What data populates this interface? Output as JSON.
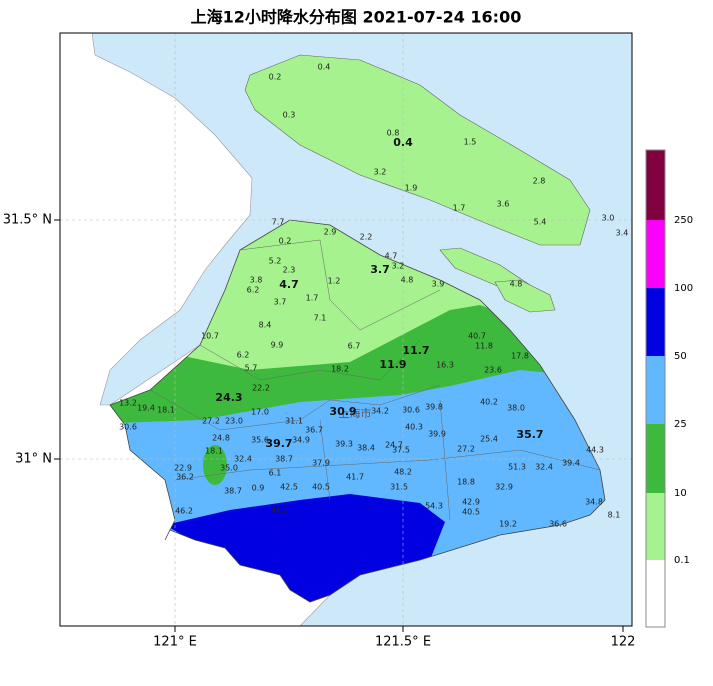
{
  "title": "上海12小时降水分布图 2021-07-24 16:00",
  "axes": {
    "x_labels": [
      "121° E",
      "121.5° E",
      "122"
    ],
    "y_labels": [
      "31.5° N",
      "31° N"
    ]
  },
  "colorbar": {
    "colors": [
      "#ffffff",
      "#a6f28f",
      "#3dba3d",
      "#61b8ff",
      "#0000e1",
      "#fa00fa",
      "#800040"
    ],
    "labels": [
      "0.1",
      "10",
      "25",
      "50",
      "100",
      "250"
    ]
  },
  "city_label": "上海市",
  "district_values": [
    "0.4",
    "3.7",
    "4.7",
    "11.7",
    "11.9",
    "24.3",
    "30.9",
    "39.7",
    "35.7"
  ],
  "station_values": [
    "0.2",
    "0.4",
    "0.3",
    "0.8",
    "1.5",
    "3.2",
    "1.9",
    "2.8",
    "1.7",
    "3.6",
    "5.4",
    "3.0",
    "3.4",
    "7.7",
    "2.9",
    "0.2",
    "2.2",
    "5.2",
    "4.7",
    "3.2",
    "2.3",
    "3.8",
    "1.2",
    "4.8",
    "6.2",
    "3.9",
    "3.7",
    "1.7",
    "4.8",
    "8.4",
    "7.1",
    "9.9",
    "6.7",
    "40.7",
    "11.8",
    "17.8",
    "6.2",
    "5.7",
    "18.2",
    "16.3",
    "23.6",
    "10.7",
    "13.2",
    "19.4",
    "18.1",
    "22.2",
    "34.2",
    "30.6",
    "39.8",
    "40.2",
    "38.0",
    "30.6",
    "27.2",
    "23.0",
    "17.0",
    "24.8",
    "35.6",
    "31.1",
    "36.7",
    "34.9",
    "39.3",
    "38.4",
    "24.7",
    "40.3",
    "39.9",
    "25.4",
    "44.3",
    "27.2",
    "37.5",
    "18.1",
    "32.4",
    "38.7",
    "37.9",
    "35.0",
    "22.9",
    "36.2",
    "6.1",
    "41.7",
    "48.2",
    "51.3",
    "32.4",
    "39.4",
    "18.8",
    "32.9",
    "38.7",
    "0.9",
    "42.5",
    "40.5",
    "31.5",
    "54.3",
    "42.9",
    "40.5",
    "34.8",
    "8.1",
    "46.2",
    "41.2",
    "19.2",
    "36.6"
  ]
}
